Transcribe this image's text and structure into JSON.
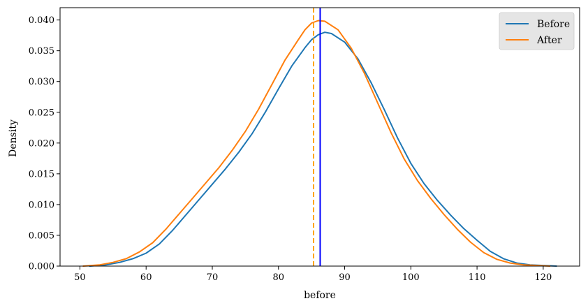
{
  "chart_data": {
    "type": "line",
    "title": "",
    "xlabel": "before",
    "ylabel": "Density",
    "xlim": [
      47,
      125.5
    ],
    "ylim": [
      0,
      0.042
    ],
    "xticks": [
      50,
      60,
      70,
      80,
      90,
      100,
      110,
      120
    ],
    "yticks": [
      0.0,
      0.005,
      0.01,
      0.015,
      0.02,
      0.025,
      0.03,
      0.035,
      0.04
    ],
    "xtick_labels": [
      "50",
      "60",
      "70",
      "80",
      "90",
      "100",
      "110",
      "120"
    ],
    "ytick_labels": [
      "0.000",
      "0.005",
      "0.010",
      "0.015",
      "0.020",
      "0.025",
      "0.030",
      "0.035",
      "0.040"
    ],
    "grid": false,
    "legend_position": "top-right",
    "series": [
      {
        "name": "Before",
        "color": "#1f77b4",
        "x": [
          51.5,
          54,
          56,
          58,
          60,
          62,
          64,
          66,
          68,
          70,
          72,
          74,
          76,
          78,
          80,
          82,
          84,
          85,
          86,
          87,
          88,
          90,
          92,
          94,
          96,
          98,
          100,
          102,
          104,
          106,
          108,
          110,
          112,
          114,
          116,
          118,
          120,
          122
        ],
        "y": [
          0.0,
          0.0002,
          0.0006,
          0.0012,
          0.0021,
          0.0036,
          0.0058,
          0.0083,
          0.0108,
          0.0133,
          0.0158,
          0.0185,
          0.0215,
          0.025,
          0.0288,
          0.0325,
          0.0355,
          0.0368,
          0.0376,
          0.038,
          0.0378,
          0.0364,
          0.0337,
          0.0298,
          0.0254,
          0.0208,
          0.0167,
          0.0134,
          0.0107,
          0.0083,
          0.0061,
          0.0042,
          0.0024,
          0.0012,
          0.0005,
          0.0002,
          0.0001,
          0.0
        ]
      },
      {
        "name": "After",
        "color": "#ff7f0e",
        "x": [
          50.5,
          53,
          55,
          57,
          59,
          61,
          63,
          65,
          67,
          69,
          71,
          73,
          75,
          77,
          79,
          81,
          83,
          84,
          85,
          86,
          87,
          89,
          91,
          93,
          95,
          97,
          99,
          101,
          103,
          105,
          107,
          109,
          111,
          113,
          115,
          117,
          119,
          121
        ],
        "y": [
          0.0,
          0.0002,
          0.0006,
          0.0012,
          0.0023,
          0.0038,
          0.006,
          0.0085,
          0.011,
          0.0135,
          0.016,
          0.0188,
          0.0219,
          0.0255,
          0.0295,
          0.0335,
          0.0368,
          0.0384,
          0.0395,
          0.0399,
          0.0398,
          0.0384,
          0.0354,
          0.0313,
          0.0265,
          0.0217,
          0.0174,
          0.0139,
          0.011,
          0.0084,
          0.006,
          0.0039,
          0.0022,
          0.0011,
          0.0005,
          0.0002,
          0.0001,
          0.0
        ]
      }
    ],
    "vlines": [
      {
        "x": 85.3,
        "color": "#ffa500",
        "style": "dashed"
      },
      {
        "x": 86.3,
        "color": "#0000ff",
        "style": "solid"
      }
    ]
  }
}
